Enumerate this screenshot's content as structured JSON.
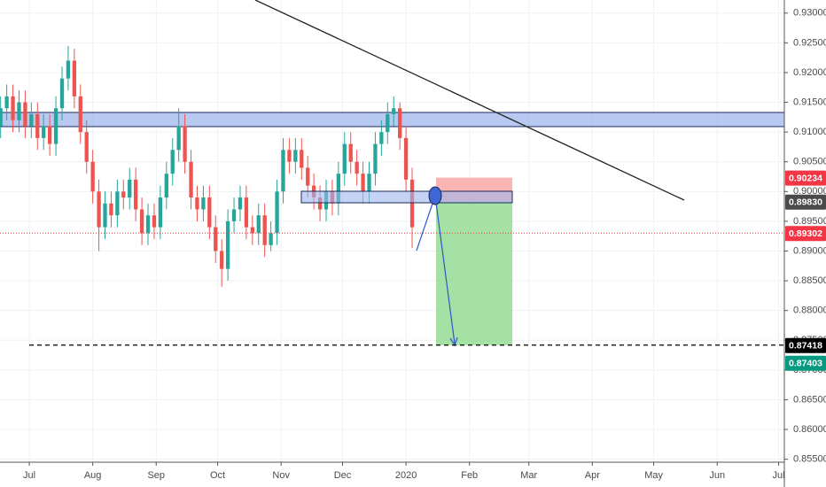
{
  "chart_data": {
    "type": "candlestick",
    "up_color": "#26a69a",
    "down_color": "#ef5350",
    "grid": true,
    "xlim": [
      -14.3,
      368.8
    ],
    "ylim": [
      0.8545,
      0.9322
    ],
    "xticks": [
      {
        "value": 0,
        "label": "Jul"
      },
      {
        "value": 31,
        "label": "Aug"
      },
      {
        "value": 62,
        "label": "Sep"
      },
      {
        "value": 92,
        "label": "Oct"
      },
      {
        "value": 123,
        "label": "Nov"
      },
      {
        "value": 153,
        "label": "Dec"
      },
      {
        "value": 184,
        "label": "2020"
      },
      {
        "value": 215,
        "label": "Feb"
      },
      {
        "value": 244,
        "label": "Mar"
      },
      {
        "value": 275,
        "label": "Apr"
      },
      {
        "value": 305,
        "label": "May"
      },
      {
        "value": 336,
        "label": "Jun"
      },
      {
        "value": 366,
        "label": "Jul"
      }
    ],
    "yticks": [
      {
        "value": 0.855,
        "label": "0.85500"
      },
      {
        "value": 0.86,
        "label": "0.86000"
      },
      {
        "value": 0.865,
        "label": "0.86500"
      },
      {
        "value": 0.87,
        "label": "0.87000"
      },
      {
        "value": 0.875,
        "label": "0.87500"
      },
      {
        "value": 0.88,
        "label": "0.88000"
      },
      {
        "value": 0.885,
        "label": "0.88500"
      },
      {
        "value": 0.89,
        "label": "0.89000"
      },
      {
        "value": 0.895,
        "label": "0.89500"
      },
      {
        "value": 0.9,
        "label": "0.90000"
      },
      {
        "value": 0.905,
        "label": "0.90500"
      },
      {
        "value": 0.91,
        "label": "0.91000"
      },
      {
        "value": 0.915,
        "label": "0.91500"
      },
      {
        "value": 0.92,
        "label": "0.92000"
      },
      {
        "value": 0.925,
        "label": "0.92500"
      },
      {
        "value": 0.93,
        "label": "0.93000"
      }
    ],
    "x": [
      -14,
      -11,
      -8,
      -5,
      -2,
      1,
      4,
      7,
      10,
      13,
      16,
      19,
      22,
      25,
      28,
      31,
      34,
      37,
      40,
      43,
      46,
      49,
      52,
      55,
      58,
      61,
      64,
      67,
      70,
      73,
      76,
      79,
      82,
      85,
      88,
      91,
      94,
      97,
      100,
      103,
      106,
      109,
      112,
      115,
      118,
      121,
      124,
      127,
      130,
      133,
      136,
      139,
      142,
      145,
      148,
      151,
      154,
      157,
      160,
      163,
      166,
      169,
      172,
      175,
      178,
      181,
      184,
      187
    ],
    "open": [
      0.911,
      0.914,
      0.916,
      0.912,
      0.915,
      0.911,
      0.913,
      0.909,
      0.911,
      0.908,
      0.914,
      0.919,
      0.922,
      0.916,
      0.91,
      0.905,
      0.9,
      0.894,
      0.898,
      0.896,
      0.9,
      0.899,
      0.902,
      0.897,
      0.893,
      0.896,
      0.894,
      0.899,
      0.903,
      0.907,
      0.911,
      0.905,
      0.899,
      0.897,
      0.899,
      0.894,
      0.89,
      0.887,
      0.895,
      0.897,
      0.899,
      0.894,
      0.893,
      0.896,
      0.891,
      0.893,
      0.9,
      0.907,
      0.905,
      0.907,
      0.904,
      0.901,
      0.899,
      0.897,
      0.9,
      0.898,
      0.903,
      0.908,
      0.905,
      0.903,
      0.9,
      0.903,
      0.908,
      0.91,
      0.913,
      0.914,
      0.909,
      0.902
    ],
    "high": [
      0.916,
      0.918,
      0.918,
      0.917,
      0.917,
      0.915,
      0.915,
      0.913,
      0.913,
      0.916,
      0.921,
      0.9245,
      0.924,
      0.918,
      0.912,
      0.907,
      0.902,
      0.9,
      0.9,
      0.902,
      0.902,
      0.904,
      0.904,
      0.899,
      0.898,
      0.898,
      0.901,
      0.905,
      0.909,
      0.914,
      0.913,
      0.907,
      0.901,
      0.901,
      0.901,
      0.896,
      0.892,
      0.897,
      0.899,
      0.901,
      0.901,
      0.896,
      0.898,
      0.898,
      0.895,
      0.902,
      0.909,
      0.909,
      0.909,
      0.909,
      0.906,
      0.903,
      0.901,
      0.902,
      0.902,
      0.905,
      0.91,
      0.91,
      0.907,
      0.905,
      0.905,
      0.91,
      0.912,
      0.915,
      0.916,
      0.915,
      0.911,
      0.904
    ],
    "low": [
      0.909,
      0.912,
      0.91,
      0.91,
      0.909,
      0.909,
      0.907,
      0.907,
      0.906,
      0.906,
      0.912,
      0.917,
      0.914,
      0.908,
      0.903,
      0.898,
      0.89,
      0.892,
      0.894,
      0.894,
      0.897,
      0.897,
      0.895,
      0.891,
      0.891,
      0.892,
      0.892,
      0.897,
      0.901,
      0.905,
      0.903,
      0.897,
      0.895,
      0.895,
      0.892,
      0.888,
      0.884,
      0.885,
      0.893,
      0.895,
      0.892,
      0.891,
      0.891,
      0.889,
      0.89,
      0.891,
      0.898,
      0.903,
      0.903,
      0.902,
      0.899,
      0.897,
      0.895,
      0.895,
      0.896,
      0.896,
      0.901,
      0.903,
      0.901,
      0.898,
      0.898,
      0.901,
      0.906,
      0.908,
      0.911,
      0.907,
      0.9,
      0.8905
    ],
    "close": [
      0.914,
      0.916,
      0.912,
      0.915,
      0.911,
      0.913,
      0.909,
      0.911,
      0.908,
      0.914,
      0.919,
      0.922,
      0.916,
      0.91,
      0.905,
      0.9,
      0.894,
      0.898,
      0.896,
      0.9,
      0.899,
      0.902,
      0.897,
      0.893,
      0.896,
      0.894,
      0.899,
      0.903,
      0.907,
      0.911,
      0.905,
      0.899,
      0.897,
      0.899,
      0.894,
      0.89,
      0.887,
      0.895,
      0.897,
      0.899,
      0.894,
      0.893,
      0.896,
      0.891,
      0.893,
      0.9,
      0.907,
      0.905,
      0.907,
      0.904,
      0.901,
      0.899,
      0.897,
      0.9,
      0.898,
      0.903,
      0.908,
      0.905,
      0.903,
      0.9,
      0.903,
      0.908,
      0.91,
      0.913,
      0.914,
      0.909,
      0.902,
      0.894
    ],
    "price_labels": [
      {
        "value": 0.90234,
        "label": "0.90234",
        "color": "#f23645"
      },
      {
        "value": 0.8983,
        "label": "0.89830",
        "color": "#4a4a4a"
      },
      {
        "value": 0.89302,
        "label": "0.89302",
        "color": "#f23645",
        "line": "dotted"
      },
      {
        "value": 0.87418,
        "label": "0.87418",
        "color": "#000000",
        "line": "dashed"
      },
      {
        "value": 0.87403,
        "label": "0.87403",
        "color": "#089981"
      }
    ]
  }
}
